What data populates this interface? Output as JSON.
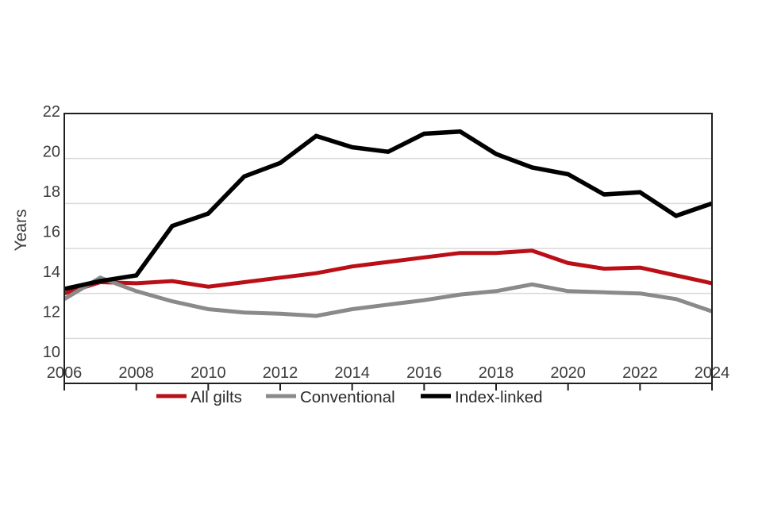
{
  "figure": {
    "y_axis_title": "Years",
    "background": "#ffffff"
  },
  "style_colors": {
    "gridline": "#d9d9d9",
    "plot_border": "#1f1f1f",
    "tick_mark": "#1f1f1f",
    "tick_label_text": "#3a3a3a",
    "legend_text": "#2b2b2b",
    "all_gilts_red": "#ba0f16",
    "conventional_gray": "#8a8a8a",
    "index_linked_black": "#000000"
  },
  "chart_data": {
    "type": "line",
    "title": "",
    "xlabel": "",
    "ylabel": "Years",
    "xlim": [
      2006,
      2024
    ],
    "ylim": [
      10,
      22
    ],
    "y_ticks": [
      22,
      20,
      18,
      16,
      14,
      12,
      10
    ],
    "x_ticks": [
      2006,
      2008,
      2010,
      2012,
      2014,
      2016,
      2018,
      2020,
      2022,
      2024
    ],
    "grid": "horizontal",
    "legend_position": "bottom",
    "x": [
      2006,
      2007,
      2008,
      2009,
      2010,
      2011,
      2012,
      2013,
      2014,
      2015,
      2016,
      2017,
      2018,
      2019,
      2020,
      2021,
      2022,
      2023,
      2024
    ],
    "series": [
      {
        "name": "All gilts",
        "color": "#ba0f16",
        "values": [
          14.0,
          14.5,
          14.45,
          14.55,
          14.3,
          14.5,
          14.7,
          14.9,
          15.2,
          15.4,
          15.6,
          15.8,
          15.8,
          15.9,
          15.35,
          15.1,
          15.15,
          14.8,
          14.45
        ]
      },
      {
        "name": "Conventional",
        "color": "#8a8a8a",
        "values": [
          13.75,
          14.7,
          14.1,
          13.65,
          13.3,
          13.15,
          13.1,
          13.0,
          13.3,
          13.5,
          13.7,
          13.95,
          14.1,
          14.4,
          14.1,
          14.05,
          14.0,
          13.75,
          13.2
        ]
      },
      {
        "name": "Index-linked",
        "color": "#000000",
        "values": [
          14.2,
          14.55,
          14.8,
          17.0,
          17.55,
          19.2,
          19.8,
          21.0,
          20.5,
          20.3,
          21.1,
          21.2,
          20.2,
          19.6,
          19.3,
          18.4,
          18.5,
          17.45,
          18.0
        ]
      }
    ]
  }
}
